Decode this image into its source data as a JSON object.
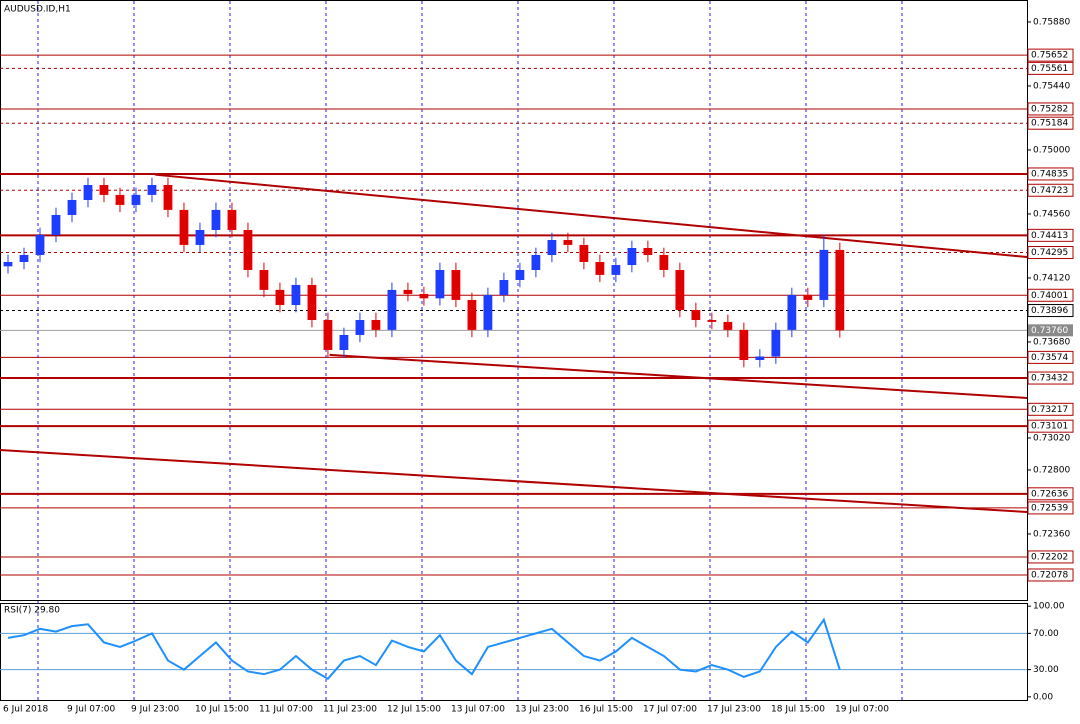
{
  "chart_data": [
    {
      "type": "candlestick",
      "title": "AUDUSD.ID,H1",
      "xlim": [
        -0.5,
        63.7
      ],
      "ylim": [
        0.71906,
        0.76031
      ],
      "yticks": [
        {
          "value": 0.7588,
          "label": "0.75880"
        },
        {
          "value": 0.7544,
          "label": "0.75440"
        },
        {
          "value": 0.75,
          "label": "0.75000"
        },
        {
          "value": 0.7456,
          "label": "0.74560"
        },
        {
          "value": 0.7412,
          "label": "0.74120"
        },
        {
          "value": 0.7368,
          "label": "0.73680"
        },
        {
          "value": 0.7302,
          "label": "0.73020"
        },
        {
          "value": 0.728,
          "label": "0.72800"
        },
        {
          "value": 0.7236,
          "label": "0.72360"
        }
      ],
      "up_color": "#1f3dff",
      "down_color": "#e00000",
      "open": [
        0.742,
        0.7423,
        0.74278,
        0.74416,
        0.74553,
        0.74656,
        0.74759,
        0.74691,
        0.74622,
        0.74691,
        0.74759,
        0.74588,
        0.74347,
        0.7445,
        0.74588,
        0.7445,
        0.74175,
        0.74038,
        0.73934,
        0.74072,
        0.73831,
        0.73625,
        0.73728,
        0.73831,
        0.73763,
        0.74038,
        0.7401,
        0.7398,
        0.74175,
        0.73969,
        0.73763,
        0.74003,
        0.74106,
        0.74175,
        0.74278,
        0.74381,
        0.74347,
        0.7423,
        0.74141,
        0.74209,
        0.74326,
        0.74278,
        0.74175,
        0.739,
        0.73831,
        0.73818,
        0.73763,
        0.73556,
        0.7358,
        0.73763,
        0.74003,
        0.73969,
        0.74313
      ],
      "high": [
        0.7428,
        0.74328,
        0.74466,
        0.74603,
        0.74706,
        0.74809,
        0.74809,
        0.74741,
        0.74741,
        0.74809,
        0.74809,
        0.74638,
        0.745,
        0.74638,
        0.74638,
        0.745,
        0.74225,
        0.74088,
        0.74122,
        0.74122,
        0.73881,
        0.73778,
        0.73881,
        0.73881,
        0.74088,
        0.74088,
        0.7406,
        0.74225,
        0.74225,
        0.74019,
        0.74053,
        0.74156,
        0.74225,
        0.74328,
        0.74431,
        0.74431,
        0.74397,
        0.7428,
        0.74259,
        0.74376,
        0.74376,
        0.74328,
        0.74225,
        0.7395,
        0.73881,
        0.73868,
        0.73813,
        0.7363,
        0.73813,
        0.74053,
        0.74053,
        0.74413,
        0.74363
      ],
      "low": [
        0.7415,
        0.7418,
        0.74228,
        0.74366,
        0.74503,
        0.74606,
        0.74641,
        0.74572,
        0.74572,
        0.74641,
        0.74538,
        0.74297,
        0.74297,
        0.744,
        0.744,
        0.74125,
        0.73988,
        0.73884,
        0.73884,
        0.73781,
        0.73575,
        0.73575,
        0.73678,
        0.73713,
        0.73713,
        0.7396,
        0.7393,
        0.7393,
        0.73919,
        0.73713,
        0.73713,
        0.73953,
        0.74056,
        0.74125,
        0.74228,
        0.74297,
        0.7418,
        0.74091,
        0.74091,
        0.74159,
        0.74228,
        0.74125,
        0.7385,
        0.73781,
        0.73768,
        0.73713,
        0.73506,
        0.73506,
        0.7353,
        0.73713,
        0.73919,
        0.73919,
        0.7371
      ],
      "close": [
        0.7423,
        0.74278,
        0.74416,
        0.74553,
        0.74656,
        0.74759,
        0.74691,
        0.74622,
        0.74691,
        0.74759,
        0.74588,
        0.74347,
        0.7445,
        0.74588,
        0.7445,
        0.74175,
        0.74038,
        0.73934,
        0.74072,
        0.73831,
        0.73625,
        0.73728,
        0.73831,
        0.73763,
        0.74038,
        0.7401,
        0.7398,
        0.74175,
        0.73969,
        0.73763,
        0.74003,
        0.74106,
        0.74175,
        0.74278,
        0.74381,
        0.74347,
        0.7423,
        0.74141,
        0.74209,
        0.74326,
        0.74278,
        0.74175,
        0.739,
        0.73831,
        0.73818,
        0.73763,
        0.73556,
        0.7358,
        0.73763,
        0.74003,
        0.73969,
        0.74313,
        0.7376
      ],
      "levels": [
        {
          "value": 0.75652,
          "style": "solid",
          "color": "#b00000"
        },
        {
          "value": 0.75561,
          "style": "dotted",
          "color": "#b00000"
        },
        {
          "value": 0.75282,
          "style": "solid",
          "color": "#b00000"
        },
        {
          "value": 0.75184,
          "style": "dotted",
          "color": "#b00000"
        },
        {
          "value": 0.74835,
          "style": "thick",
          "color": "#b00000"
        },
        {
          "value": 0.74723,
          "style": "dotted",
          "color": "#b00000"
        },
        {
          "value": 0.74413,
          "style": "thick",
          "color": "#b00000"
        },
        {
          "value": 0.74295,
          "style": "dotted",
          "color": "#b00000"
        },
        {
          "value": 0.74001,
          "style": "solid",
          "color": "#b00000"
        },
        {
          "value": 0.73896,
          "style": "dotted",
          "color": "#000000"
        },
        {
          "value": 0.73574,
          "style": "solid",
          "color": "#b00000"
        },
        {
          "value": 0.73432,
          "style": "thick",
          "color": "#b00000"
        },
        {
          "value": 0.73217,
          "style": "solid",
          "color": "#b00000"
        },
        {
          "value": 0.73101,
          "style": "thick",
          "color": "#b00000"
        },
        {
          "value": 0.72636,
          "style": "thick",
          "color": "#b00000"
        },
        {
          "value": 0.72539,
          "style": "solid",
          "color": "#b00000"
        },
        {
          "value": 0.72202,
          "style": "solid",
          "color": "#b00000"
        },
        {
          "value": 0.72078,
          "style": "solid",
          "color": "#b00000"
        }
      ],
      "current_price": {
        "value": 0.7376,
        "label": "0.73760"
      },
      "trendlines": [
        {
          "x": [
            9.2,
            63.7
          ],
          "y": [
            0.7483,
            0.74264
          ],
          "color": "#b00000"
        },
        {
          "x": [
            20.1,
            63.7
          ],
          "y": [
            0.73591,
            0.73295
          ],
          "color": "#b00000"
        },
        {
          "x": [
            -0.5,
            63.7
          ],
          "y": [
            0.72937,
            0.72511
          ],
          "color": "#b00000"
        }
      ],
      "x_labels": [
        "6 Jul 2018",
        "9 Jul 07:00",
        "9 Jul 23:00",
        "10 Jul 15:00",
        "11 Jul 07:00",
        "11 Jul 23:00",
        "12 Jul 15:00",
        "13 Jul 07:00",
        "13 Jul 23:00",
        "16 Jul 15:00",
        "17 Jul 07:00",
        "17 Jul 23:00",
        "18 Jul 15:00",
        "19 Jul 07:00"
      ]
    },
    {
      "type": "line",
      "title": "RSI(7) 29.80",
      "color": "#1e90ff",
      "xlim": [
        -0.5,
        63.7
      ],
      "ylim": [
        -3.5,
        103.5
      ],
      "yticks": [
        {
          "value": 100,
          "label": "100.00"
        },
        {
          "value": 70,
          "label": "70.00"
        },
        {
          "value": 30,
          "label": "30.00"
        },
        {
          "value": 0,
          "label": "0.00"
        }
      ],
      "levels": [
        70,
        30
      ],
      "values": [
        65,
        68,
        75,
        72,
        78,
        80,
        60,
        55,
        62,
        70,
        40,
        30,
        45,
        60,
        40,
        28,
        25,
        30,
        45,
        30,
        20,
        40,
        45,
        35,
        62,
        55,
        50,
        68,
        40,
        25,
        55,
        60,
        65,
        70,
        75,
        60,
        45,
        40,
        50,
        65,
        55,
        45,
        30,
        28,
        35,
        30,
        22,
        28,
        55,
        72,
        60,
        85,
        29.8
      ]
    }
  ]
}
